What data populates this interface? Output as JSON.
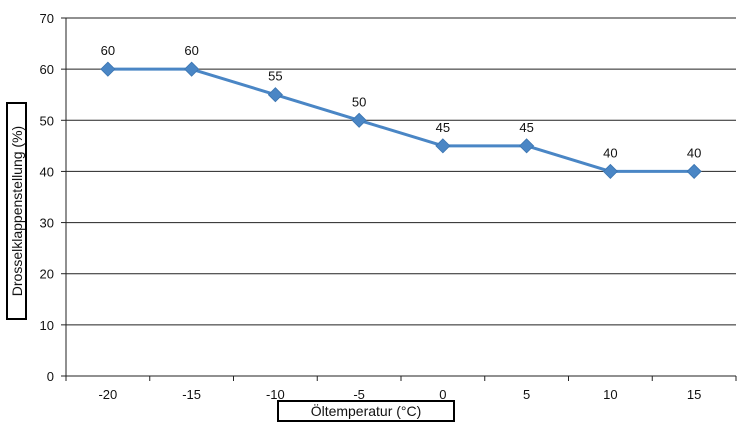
{
  "chart_data": {
    "type": "line",
    "title": "",
    "xlabel": "Öltemperatur (°C)",
    "ylabel": "Drosselklappenstellung (%)",
    "categories": [
      "-20",
      "-15",
      "-10",
      "-5",
      "0",
      "5",
      "10",
      "15"
    ],
    "series": [
      {
        "values": [
          60,
          60,
          55,
          50,
          45,
          45,
          40,
          40
        ],
        "data_labels": [
          "60",
          "60",
          "55",
          "50",
          "45",
          "45",
          "40",
          "40"
        ],
        "color": "#4a86c5",
        "marker": "diamond"
      }
    ],
    "ylim": [
      0,
      70
    ],
    "yticks": [
      0,
      10,
      20,
      30,
      40,
      50,
      60,
      70
    ],
    "ytick_labels": [
      "0",
      "10",
      "20",
      "30",
      "40",
      "50",
      "60",
      "70"
    ],
    "grid": true,
    "legend": "none"
  }
}
